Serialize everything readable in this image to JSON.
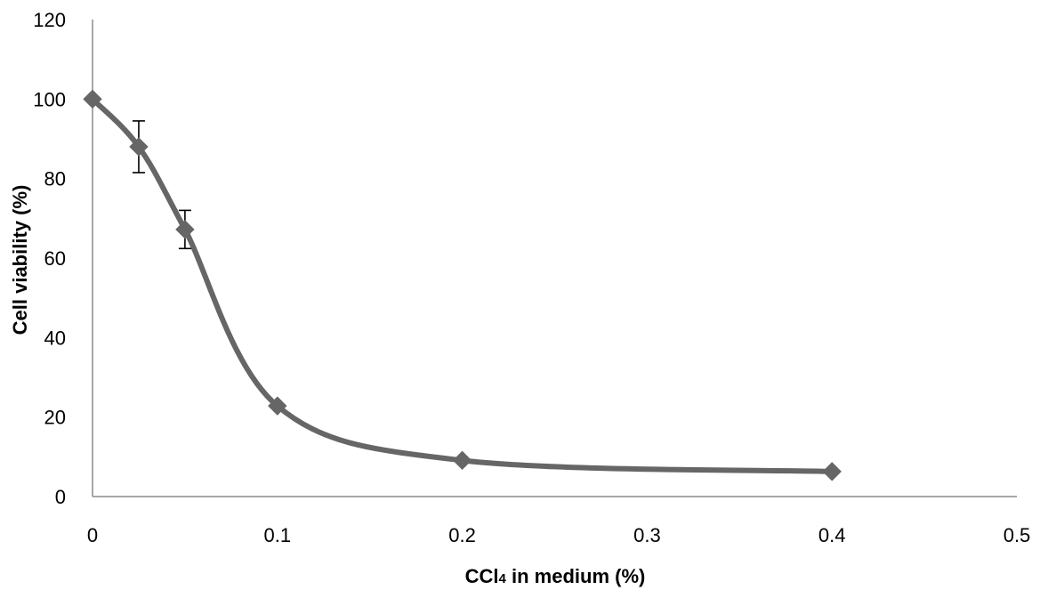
{
  "chart_data": {
    "type": "line",
    "title": "",
    "xlabel": {
      "prefix": "CCl",
      "subscript": "4",
      "suffix": " in medium (%)"
    },
    "ylabel": "Cell viability (%)",
    "xlim": [
      0,
      0.5
    ],
    "ylim": [
      0,
      120
    ],
    "x_ticks": [
      "0",
      "0.1",
      "0.2",
      "0.3",
      "0.4",
      "0.5"
    ],
    "y_ticks": [
      "0",
      "20",
      "40",
      "60",
      "80",
      "100",
      "120"
    ],
    "grid": false,
    "legend": "none",
    "smoothed": true,
    "series": [
      {
        "color": "#666666",
        "marker": "diamond",
        "x": [
          0,
          0.025,
          0.05,
          0.1,
          0.2,
          0.4
        ],
        "y": [
          100,
          88,
          67.2,
          22.8,
          9.1,
          6.3
        ],
        "error": [
          0,
          6.5,
          4.8,
          0,
          0,
          0
        ]
      }
    ]
  }
}
